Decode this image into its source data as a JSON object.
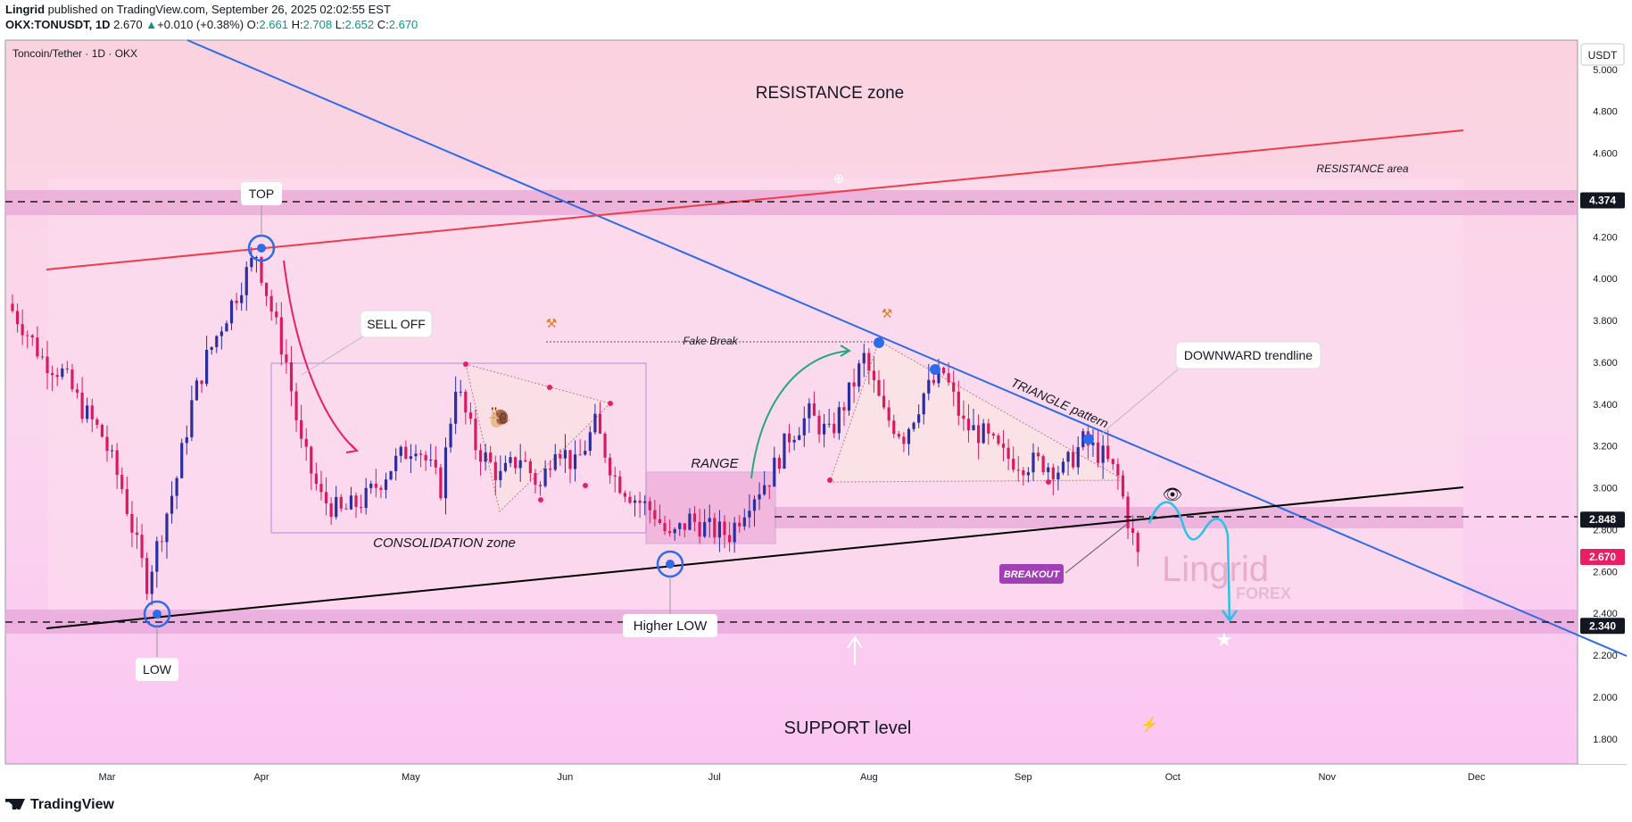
{
  "header": {
    "publisher": "Lingrid",
    "published_text": "published on TradingView.com, September 26, 2025 02:02:55 EST",
    "symbol": "OKX:TONUSDT, 1D",
    "last": "2.670",
    "change": "+0.010 (+0.38%)",
    "o_label": "O:",
    "o": "2.661",
    "h_label": "H:",
    "h": "2.708",
    "l_label": "L:",
    "l": "2.652",
    "c_label": "C:",
    "c": "2.670",
    "up_arrow": "▲"
  },
  "chart_title": "Toncoin/Tether · 1D · OKX",
  "currency_badge": "USDT",
  "footer_brand": "TradingView",
  "colors": {
    "up": "#089981",
    "candle_up": "#2a2e9e",
    "candle_down": "#d81b60",
    "resistance_zone": "#f8c9d9",
    "support_zone": "#f7c4ec",
    "trend_blue": "#2f6ae8",
    "trend_red": "#ef3b4a",
    "trend_black": "#000000"
  },
  "annotations": {
    "resistance_zone": "RESISTANCE zone",
    "resistance_area": "RESISTANCE area",
    "top": "TOP",
    "low": "LOW",
    "sell_off": "SELL OFF",
    "fake_break": "Fake Break",
    "consolidation": "CONSOLIDATION zone",
    "range": "RANGE",
    "higher_low": "Higher LOW",
    "triangle": "TRIANGLE pattern",
    "downward": "DOWNWARD trendline",
    "breakout": "BREAKOUT",
    "support": "SUPPORT level",
    "watermark_main": "Lingrid",
    "watermark_sub": "FOREX"
  },
  "chart_data": {
    "type": "candlestick",
    "title": "Toncoin/Tether · 1D · OKX",
    "y_axis": {
      "ticks": [
        "5.000",
        "4.800",
        "4.600",
        "4.200",
        "4.000",
        "3.800",
        "3.600",
        "3.400",
        "3.200",
        "3.000",
        "2.800",
        "2.600",
        "2.400",
        "2.200",
        "2.000",
        "1.800"
      ],
      "range": [
        1.68,
        5.14
      ]
    },
    "x_axis": {
      "ticks": [
        "Mar",
        "Apr",
        "May",
        "Jun",
        "Jul",
        "Aug",
        "Sep",
        "Oct",
        "Nov",
        "Dec"
      ]
    },
    "price_labels": [
      {
        "value": "4.374",
        "style": "dark"
      },
      {
        "value": "2.848",
        "style": "dark"
      },
      {
        "value": "2.670",
        "style": "red"
      },
      {
        "value": "2.340",
        "style": "dark"
      }
    ],
    "levels": {
      "resistance": 4.374,
      "mid": 2.848,
      "support": 2.34,
      "last": 2.67
    },
    "trendlines": [
      {
        "name": "downward",
        "from": [
          "2025-01-23",
          5.35
        ],
        "to": [
          "2025-12-09",
          2.18
        ]
      },
      {
        "name": "upper-resistance",
        "from": [
          "2025-02-10",
          4.05
        ],
        "to": [
          "2025-11-27",
          4.72
        ]
      },
      {
        "name": "rising-support",
        "from": [
          "2025-02-10",
          2.33
        ],
        "to": [
          "2025-11-27",
          2.99
        ]
      }
    ],
    "key_points": [
      {
        "label": "TOP",
        "date": "2025-04-01",
        "price": 4.16
      },
      {
        "label": "LOW",
        "date": "2025-03-10",
        "price": 2.36
      },
      {
        "label": "Higher LOW",
        "date": "2025-06-22",
        "price": 2.62
      }
    ],
    "path_points": [
      [
        "2025-02-10",
        3.88
      ],
      [
        "2025-02-13",
        3.78
      ],
      [
        "2025-02-17",
        3.62
      ],
      [
        "2025-02-21",
        3.55
      ],
      [
        "2025-02-25",
        3.38
      ],
      [
        "2025-03-01",
        3.25
      ],
      [
        "2025-03-05",
        3.0
      ],
      [
        "2025-03-08",
        2.72
      ],
      [
        "2025-03-10",
        2.55
      ],
      [
        "2025-03-13",
        2.8
      ],
      [
        "2025-03-16",
        3.05
      ],
      [
        "2025-03-19",
        3.4
      ],
      [
        "2025-03-22",
        3.62
      ],
      [
        "2025-03-25",
        3.78
      ],
      [
        "2025-03-29",
        3.98
      ],
      [
        "2025-04-01",
        4.12
      ],
      [
        "2025-04-04",
        3.85
      ],
      [
        "2025-04-07",
        3.6
      ],
      [
        "2025-04-10",
        3.2
      ],
      [
        "2025-04-14",
        2.95
      ],
      [
        "2025-04-18",
        2.88
      ],
      [
        "2025-04-23",
        2.95
      ],
      [
        "2025-04-28",
        3.1
      ],
      [
        "2025-05-03",
        3.22
      ],
      [
        "2025-05-08",
        3.0
      ],
      [
        "2025-05-11",
        3.5
      ],
      [
        "2025-05-15",
        3.2
      ],
      [
        "2025-05-20",
        3.05
      ],
      [
        "2025-05-24",
        3.15
      ],
      [
        "2025-05-28",
        3.0
      ],
      [
        "2025-05-31",
        3.22
      ],
      [
        "2025-06-04",
        3.1
      ],
      [
        "2025-06-08",
        3.3
      ],
      [
        "2025-06-12",
        3.05
      ],
      [
        "2025-06-16",
        2.95
      ],
      [
        "2025-06-20",
        2.88
      ],
      [
        "2025-06-23",
        2.75
      ],
      [
        "2025-06-27",
        2.85
      ],
      [
        "2025-07-01",
        2.8
      ],
      [
        "2025-07-05",
        2.78
      ],
      [
        "2025-07-09",
        2.95
      ],
      [
        "2025-07-13",
        3.05
      ],
      [
        "2025-07-17",
        3.25
      ],
      [
        "2025-07-21",
        3.35
      ],
      [
        "2025-07-25",
        3.25
      ],
      [
        "2025-07-29",
        3.45
      ],
      [
        "2025-08-01",
        3.62
      ],
      [
        "2025-08-05",
        3.35
      ],
      [
        "2025-08-09",
        3.25
      ],
      [
        "2025-08-13",
        3.45
      ],
      [
        "2025-08-17",
        3.55
      ],
      [
        "2025-08-21",
        3.3
      ],
      [
        "2025-08-25",
        3.25
      ],
      [
        "2025-08-29",
        3.15
      ],
      [
        "2025-09-02",
        3.12
      ],
      [
        "2025-09-06",
        3.12
      ],
      [
        "2025-09-10",
        3.08
      ],
      [
        "2025-09-14",
        3.22
      ],
      [
        "2025-09-18",
        3.15
      ],
      [
        "2025-09-21",
        3.05
      ],
      [
        "2025-09-23",
        2.85
      ],
      [
        "2025-09-25",
        2.67
      ]
    ]
  }
}
